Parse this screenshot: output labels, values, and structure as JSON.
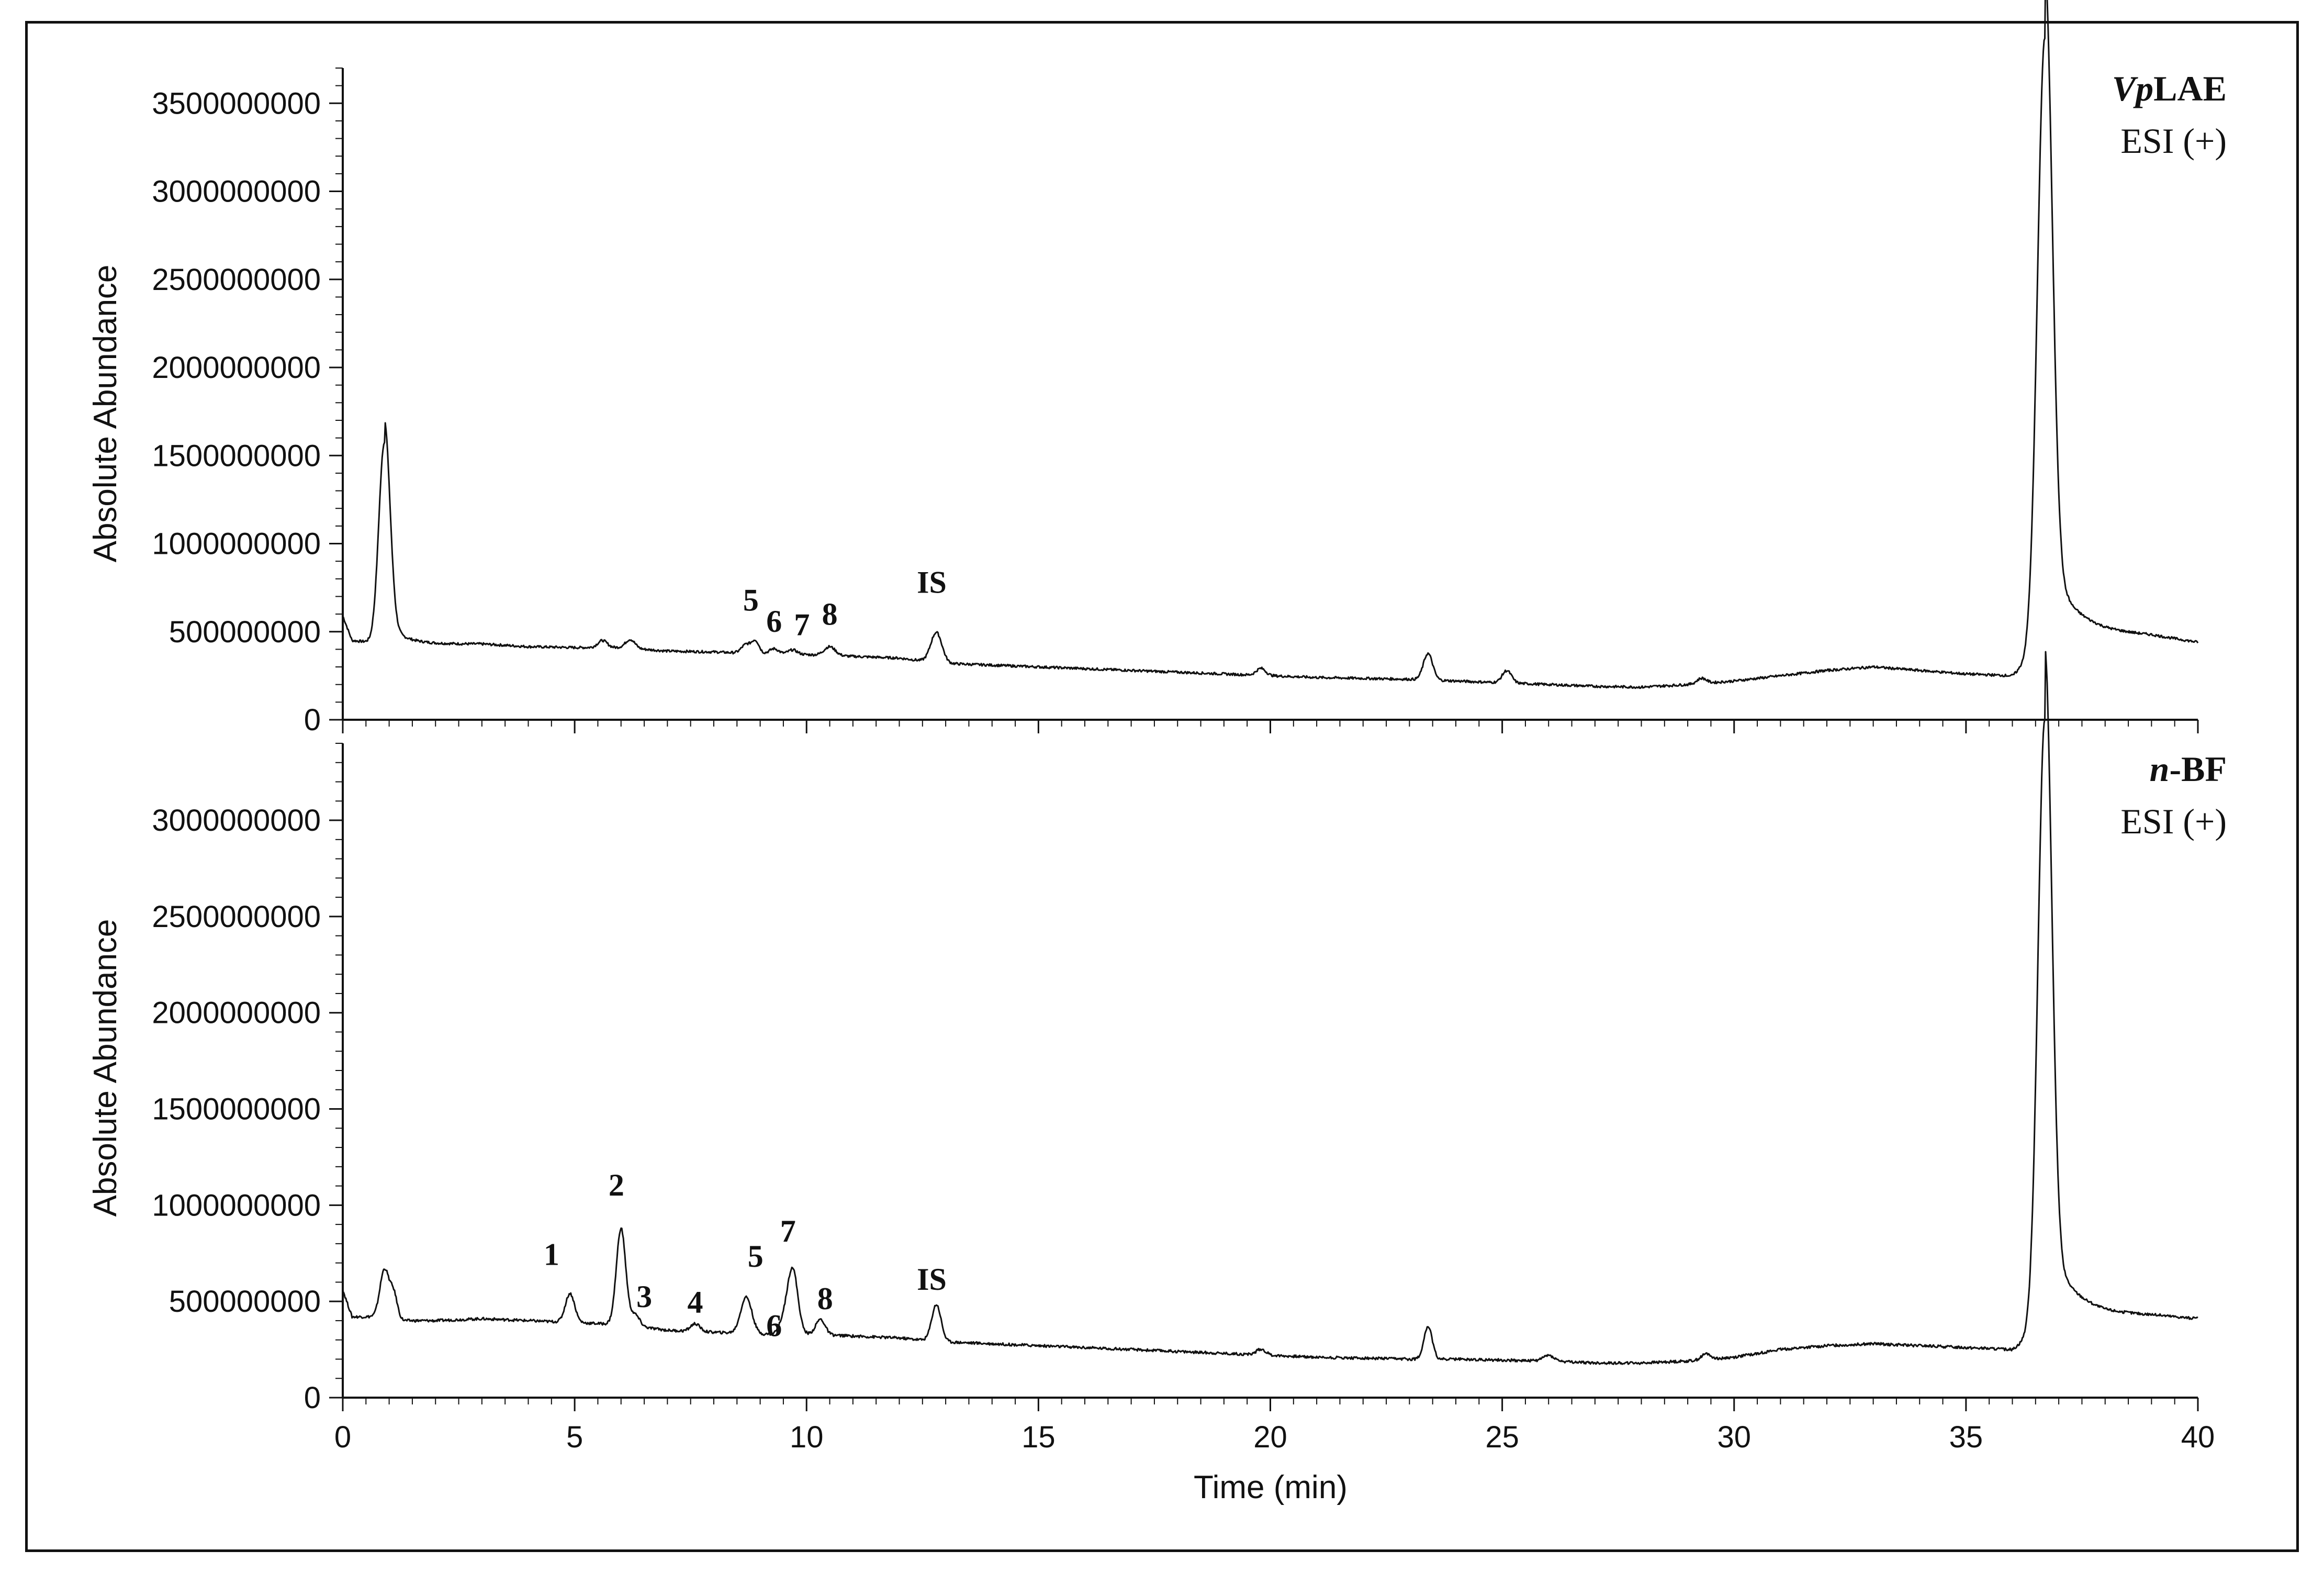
{
  "chart_data": [
    {
      "type": "line",
      "title": "",
      "panel_label": {
        "italic": "Vp",
        "bold": "LAE"
      },
      "ionization": "ESI (+)",
      "ylabel": "Absolute Abundance",
      "xlabel": "",
      "xlim": [
        0,
        40
      ],
      "ylim": [
        0,
        3700000000
      ],
      "yticks": [
        0,
        500000000,
        1000000000,
        1500000000,
        2000000000,
        2500000000,
        3000000000,
        3500000000
      ],
      "yticklabels": [
        "0",
        "500000000",
        "1000000000",
        "1500000000",
        "2000000000",
        "2500000000",
        "3000000000",
        "3500000000"
      ],
      "baseline": [
        [
          0,
          590
        ],
        [
          0.2,
          450
        ],
        [
          0.6,
          440
        ],
        [
          0.8,
          460
        ],
        [
          1.0,
          430
        ],
        [
          2,
          430
        ],
        [
          3,
          430
        ],
        [
          4,
          415
        ],
        [
          5,
          410
        ],
        [
          6,
          410
        ],
        [
          7,
          390
        ],
        [
          8,
          385
        ],
        [
          9,
          375
        ],
        [
          10,
          370
        ],
        [
          11,
          360
        ],
        [
          12,
          350
        ],
        [
          13,
          320
        ],
        [
          14,
          310
        ],
        [
          15,
          300
        ],
        [
          16,
          290
        ],
        [
          17,
          280
        ],
        [
          18,
          270
        ],
        [
          19,
          260
        ],
        [
          20,
          250
        ],
        [
          21,
          240
        ],
        [
          22,
          235
        ],
        [
          23,
          230
        ],
        [
          24,
          220
        ],
        [
          25,
          210
        ],
        [
          26,
          200
        ],
        [
          27,
          190
        ],
        [
          28,
          185
        ],
        [
          29,
          200
        ],
        [
          30,
          220
        ],
        [
          31,
          250
        ],
        [
          32,
          280
        ],
        [
          33,
          300
        ],
        [
          34,
          280
        ],
        [
          35,
          260
        ],
        [
          36.0,
          250
        ],
        [
          37.2,
          530
        ],
        [
          38,
          500
        ],
        [
          39,
          480
        ],
        [
          40,
          440
        ]
      ],
      "peaks": [
        [
          0.9,
          1130,
          0.12
        ],
        [
          5.6,
          40,
          0.1
        ],
        [
          6.2,
          50,
          0.1
        ],
        [
          8.7,
          50,
          0.1
        ],
        [
          8.9,
          70,
          0.08
        ],
        [
          9.3,
          30,
          0.1
        ],
        [
          9.7,
          25,
          0.1
        ],
        [
          10.5,
          50,
          0.12
        ],
        [
          12.8,
          170,
          0.12
        ],
        [
          19.8,
          40,
          0.1
        ],
        [
          23.4,
          150,
          0.1
        ],
        [
          25.1,
          70,
          0.1
        ],
        [
          29.3,
          30,
          0.1
        ],
        [
          36.7,
          3460,
          0.16
        ]
      ],
      "annotations": [
        {
          "label": "5",
          "x": 8.8,
          "y": 620
        },
        {
          "label": "6",
          "x": 9.3,
          "y": 500
        },
        {
          "label": "7",
          "x": 9.9,
          "y": 480
        },
        {
          "label": "8",
          "x": 10.5,
          "y": 540
        },
        {
          "label": "IS",
          "x": 12.7,
          "y": 720
        }
      ]
    },
    {
      "type": "line",
      "title": "",
      "panel_label": {
        "italic": "n",
        "bold": "-BF"
      },
      "ionization": "ESI (+)",
      "ylabel": "Absolute Abundance",
      "xlabel": "Time (min)",
      "xlim": [
        0,
        40
      ],
      "ylim": [
        0,
        3400000000
      ],
      "yticks": [
        0,
        500000000,
        1000000000,
        1500000000,
        2000000000,
        2500000000,
        3000000000
      ],
      "yticklabels": [
        "0",
        "500000000",
        "1000000000",
        "1500000000",
        "2000000000",
        "2500000000",
        "3000000000"
      ],
      "xticks": [
        0,
        5,
        10,
        15,
        20,
        25,
        30,
        35,
        40
      ],
      "xticklabels": [
        "0",
        "5",
        "10",
        "15",
        "20",
        "25",
        "30",
        "35",
        "40"
      ],
      "baseline": [
        [
          0,
          560
        ],
        [
          0.2,
          420
        ],
        [
          0.6,
          420
        ],
        [
          1.0,
          400
        ],
        [
          2,
          400
        ],
        [
          3,
          410
        ],
        [
          4,
          400
        ],
        [
          5,
          390
        ],
        [
          6,
          380
        ],
        [
          7,
          350
        ],
        [
          8,
          340
        ],
        [
          9,
          330
        ],
        [
          10,
          330
        ],
        [
          11,
          320
        ],
        [
          12,
          310
        ],
        [
          13,
          290
        ],
        [
          14,
          280
        ],
        [
          15,
          270
        ],
        [
          16,
          260
        ],
        [
          17,
          250
        ],
        [
          18,
          240
        ],
        [
          19,
          230
        ],
        [
          20,
          220
        ],
        [
          21,
          210
        ],
        [
          22,
          205
        ],
        [
          23,
          200
        ],
        [
          24,
          200
        ],
        [
          25,
          195
        ],
        [
          26,
          190
        ],
        [
          27,
          180
        ],
        [
          28,
          180
        ],
        [
          29,
          190
        ],
        [
          30,
          210
        ],
        [
          31,
          250
        ],
        [
          32,
          270
        ],
        [
          33,
          280
        ],
        [
          34,
          270
        ],
        [
          35,
          260
        ],
        [
          36.0,
          250
        ],
        [
          37.2,
          470
        ],
        [
          38,
          440
        ],
        [
          39,
          430
        ],
        [
          40,
          410
        ]
      ],
      "peaks": [
        [
          0.9,
          260,
          0.1
        ],
        [
          1.1,
          130,
          0.08
        ],
        [
          4.9,
          150,
          0.1
        ],
        [
          6.0,
          500,
          0.1
        ],
        [
          6.3,
          60,
          0.1
        ],
        [
          7.6,
          40,
          0.1
        ],
        [
          8.7,
          190,
          0.12
        ],
        [
          9.5,
          60,
          0.1
        ],
        [
          9.7,
          340,
          0.11
        ],
        [
          10.3,
          80,
          0.1
        ],
        [
          12.8,
          190,
          0.1
        ],
        [
          19.8,
          30,
          0.1
        ],
        [
          23.4,
          170,
          0.09
        ],
        [
          26.0,
          30,
          0.12
        ],
        [
          29.4,
          30,
          0.1
        ],
        [
          36.7,
          3150,
          0.15
        ]
      ],
      "annotations": [
        {
          "label": "1",
          "x": 4.5,
          "y": 690
        },
        {
          "label": "2",
          "x": 5.9,
          "y": 1050
        },
        {
          "label": "3",
          "x": 6.5,
          "y": 470
        },
        {
          "label": "4",
          "x": 7.6,
          "y": 440
        },
        {
          "label": "5",
          "x": 8.9,
          "y": 680
        },
        {
          "label": "6",
          "x": 9.3,
          "y": 320
        },
        {
          "label": "7",
          "x": 9.6,
          "y": 810
        },
        {
          "label": "8",
          "x": 10.4,
          "y": 460
        },
        {
          "label": "IS",
          "x": 12.7,
          "y": 560
        }
      ]
    }
  ]
}
